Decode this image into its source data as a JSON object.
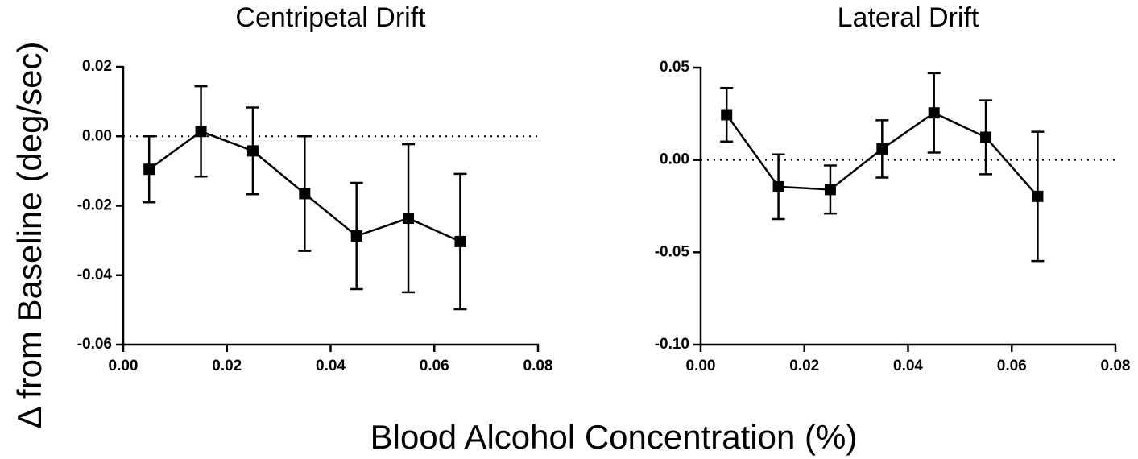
{
  "axis_labels": {
    "x": "Blood Alcohol Concentration (%)",
    "y": "Δ from Baseline (deg/sec)"
  },
  "chart_data": [
    {
      "type": "line",
      "title": "Centripetal Drift",
      "x": [
        0.005,
        0.015,
        0.025,
        0.035,
        0.045,
        0.055,
        0.065
      ],
      "series": [
        {
          "color": "#000000",
          "values": [
            -0.0095,
            0.0014,
            -0.0042,
            -0.0165,
            -0.0287,
            -0.0236,
            -0.0303
          ],
          "errors": [
            0.0095,
            0.013,
            0.0125,
            0.0165,
            0.0153,
            0.0213,
            0.0195
          ]
        }
      ],
      "xlim": [
        0,
        0.08
      ],
      "xticks": [
        {
          "value": 0,
          "label": "0.00"
        },
        0.02,
        0.04,
        0.06,
        0.08
      ],
      "ylim": [
        -0.06,
        0.02
      ],
      "yticks": [
        0.02,
        {
          "value": 0,
          "label": "0.00"
        },
        -0.02,
        -0.04,
        -0.06
      ],
      "reference_line": 0
    },
    {
      "type": "line",
      "title": "Lateral Drift",
      "x": [
        0.005,
        0.015,
        0.025,
        0.035,
        0.045,
        0.055,
        0.065
      ],
      "series": [
        {
          "color": "#000000",
          "values": [
            0.0245,
            -0.0145,
            -0.016,
            0.006,
            0.0255,
            0.0123,
            -0.0197
          ],
          "errors": [
            0.0145,
            0.0175,
            0.013,
            0.0155,
            0.0215,
            0.02,
            0.035
          ]
        }
      ],
      "xlim": [
        0,
        0.08
      ],
      "xticks": [
        {
          "value": 0,
          "label": "0.00"
        },
        0.02,
        0.04,
        0.06,
        0.08
      ],
      "ylim": [
        -0.1,
        0.05
      ],
      "yticks": [
        0.05,
        {
          "value": 0,
          "label": "0.00"
        },
        -0.05,
        {
          "value": -0.1,
          "label": "-0.10"
        }
      ],
      "reference_line": 0
    }
  ]
}
